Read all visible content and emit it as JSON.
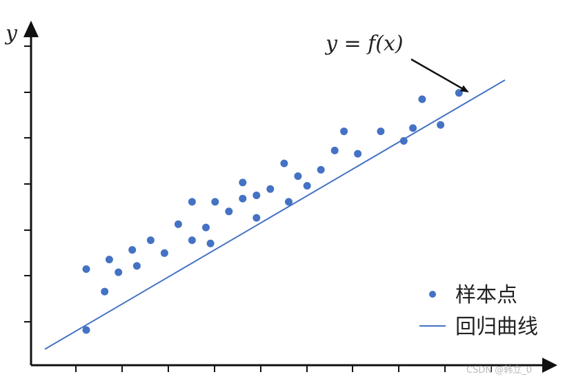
{
  "chart_data": {
    "type": "scatter",
    "title": "",
    "xlabel": "",
    "ylabel": "y",
    "xlim": [
      0,
      10
    ],
    "ylim": [
      0,
      10
    ],
    "grid": false,
    "legend_position": "bottom-right",
    "annotation": "y = f(x)",
    "series": [
      {
        "name": "样本点",
        "kind": "points",
        "color": "#4472c4",
        "points": [
          [
            1.2,
            1.1
          ],
          [
            1.2,
            3.0
          ],
          [
            1.6,
            2.3
          ],
          [
            1.7,
            3.3
          ],
          [
            1.9,
            2.9
          ],
          [
            2.2,
            3.6
          ],
          [
            2.3,
            3.1
          ],
          [
            2.6,
            3.9
          ],
          [
            2.9,
            3.5
          ],
          [
            3.2,
            4.4
          ],
          [
            3.5,
            3.9
          ],
          [
            3.5,
            5.1
          ],
          [
            3.8,
            4.3
          ],
          [
            3.9,
            3.8
          ],
          [
            4.0,
            5.1
          ],
          [
            4.3,
            4.8
          ],
          [
            4.6,
            5.2
          ],
          [
            4.6,
            5.7
          ],
          [
            4.9,
            4.6
          ],
          [
            4.9,
            5.3
          ],
          [
            5.2,
            5.5
          ],
          [
            5.5,
            6.3
          ],
          [
            5.6,
            5.1
          ],
          [
            5.8,
            5.9
          ],
          [
            6.0,
            5.6
          ],
          [
            6.3,
            6.1
          ],
          [
            6.6,
            6.7
          ],
          [
            6.8,
            7.3
          ],
          [
            7.1,
            6.6
          ],
          [
            7.6,
            7.3
          ],
          [
            8.1,
            7.0
          ],
          [
            8.3,
            7.4
          ],
          [
            8.5,
            8.3
          ],
          [
            8.9,
            7.5
          ],
          [
            9.3,
            8.5
          ]
        ]
      },
      {
        "name": "回归曲线",
        "kind": "line",
        "color": "#4472c4",
        "points": [
          [
            0.3,
            0.5
          ],
          [
            10.3,
            8.9
          ]
        ]
      }
    ]
  },
  "watermark": "CSDN @韩立_0"
}
